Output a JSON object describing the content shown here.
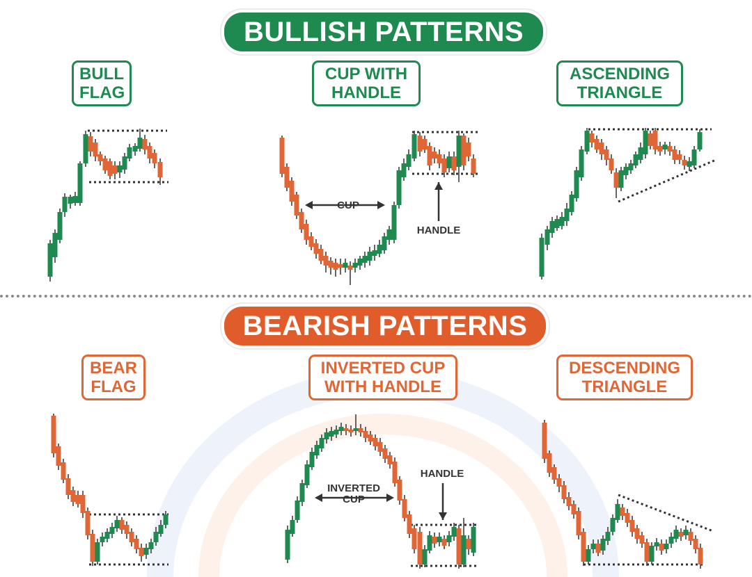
{
  "bullish": {
    "title": "BULLISH PATTERNS",
    "patterns": [
      {
        "line1": "BULL",
        "line2": "FLAG"
      },
      {
        "line1": "CUP WITH",
        "line2": "HANDLE"
      },
      {
        "line1": "ASCENDING",
        "line2": "TRIANGLE"
      }
    ],
    "annotations": {
      "cup": "CUP",
      "handle": "HANDLE"
    }
  },
  "bearish": {
    "title": "BEARISH PATTERNS",
    "patterns": [
      {
        "line1": "BEAR",
        "line2": "FLAG"
      },
      {
        "line1": "INVERTED CUP",
        "line2": "WITH HANDLE"
      },
      {
        "line1": "DESCENDING",
        "line2": "TRIANGLE"
      }
    ],
    "annotations": {
      "inverted_cup_line1": "INVERTED",
      "inverted_cup_line2": "CUP",
      "handle": "HANDLE"
    }
  },
  "colors": {
    "bull_green": "#1e8a4f",
    "bear_orange": "#e05d2b",
    "candle_up": "#1e8a4f",
    "candle_down": "#e06636",
    "wick": "#333333",
    "guide_line": "#333333"
  },
  "icons": [
    "left-right-arrow-icon",
    "up-arrow-icon",
    "down-arrow-icon"
  ]
}
